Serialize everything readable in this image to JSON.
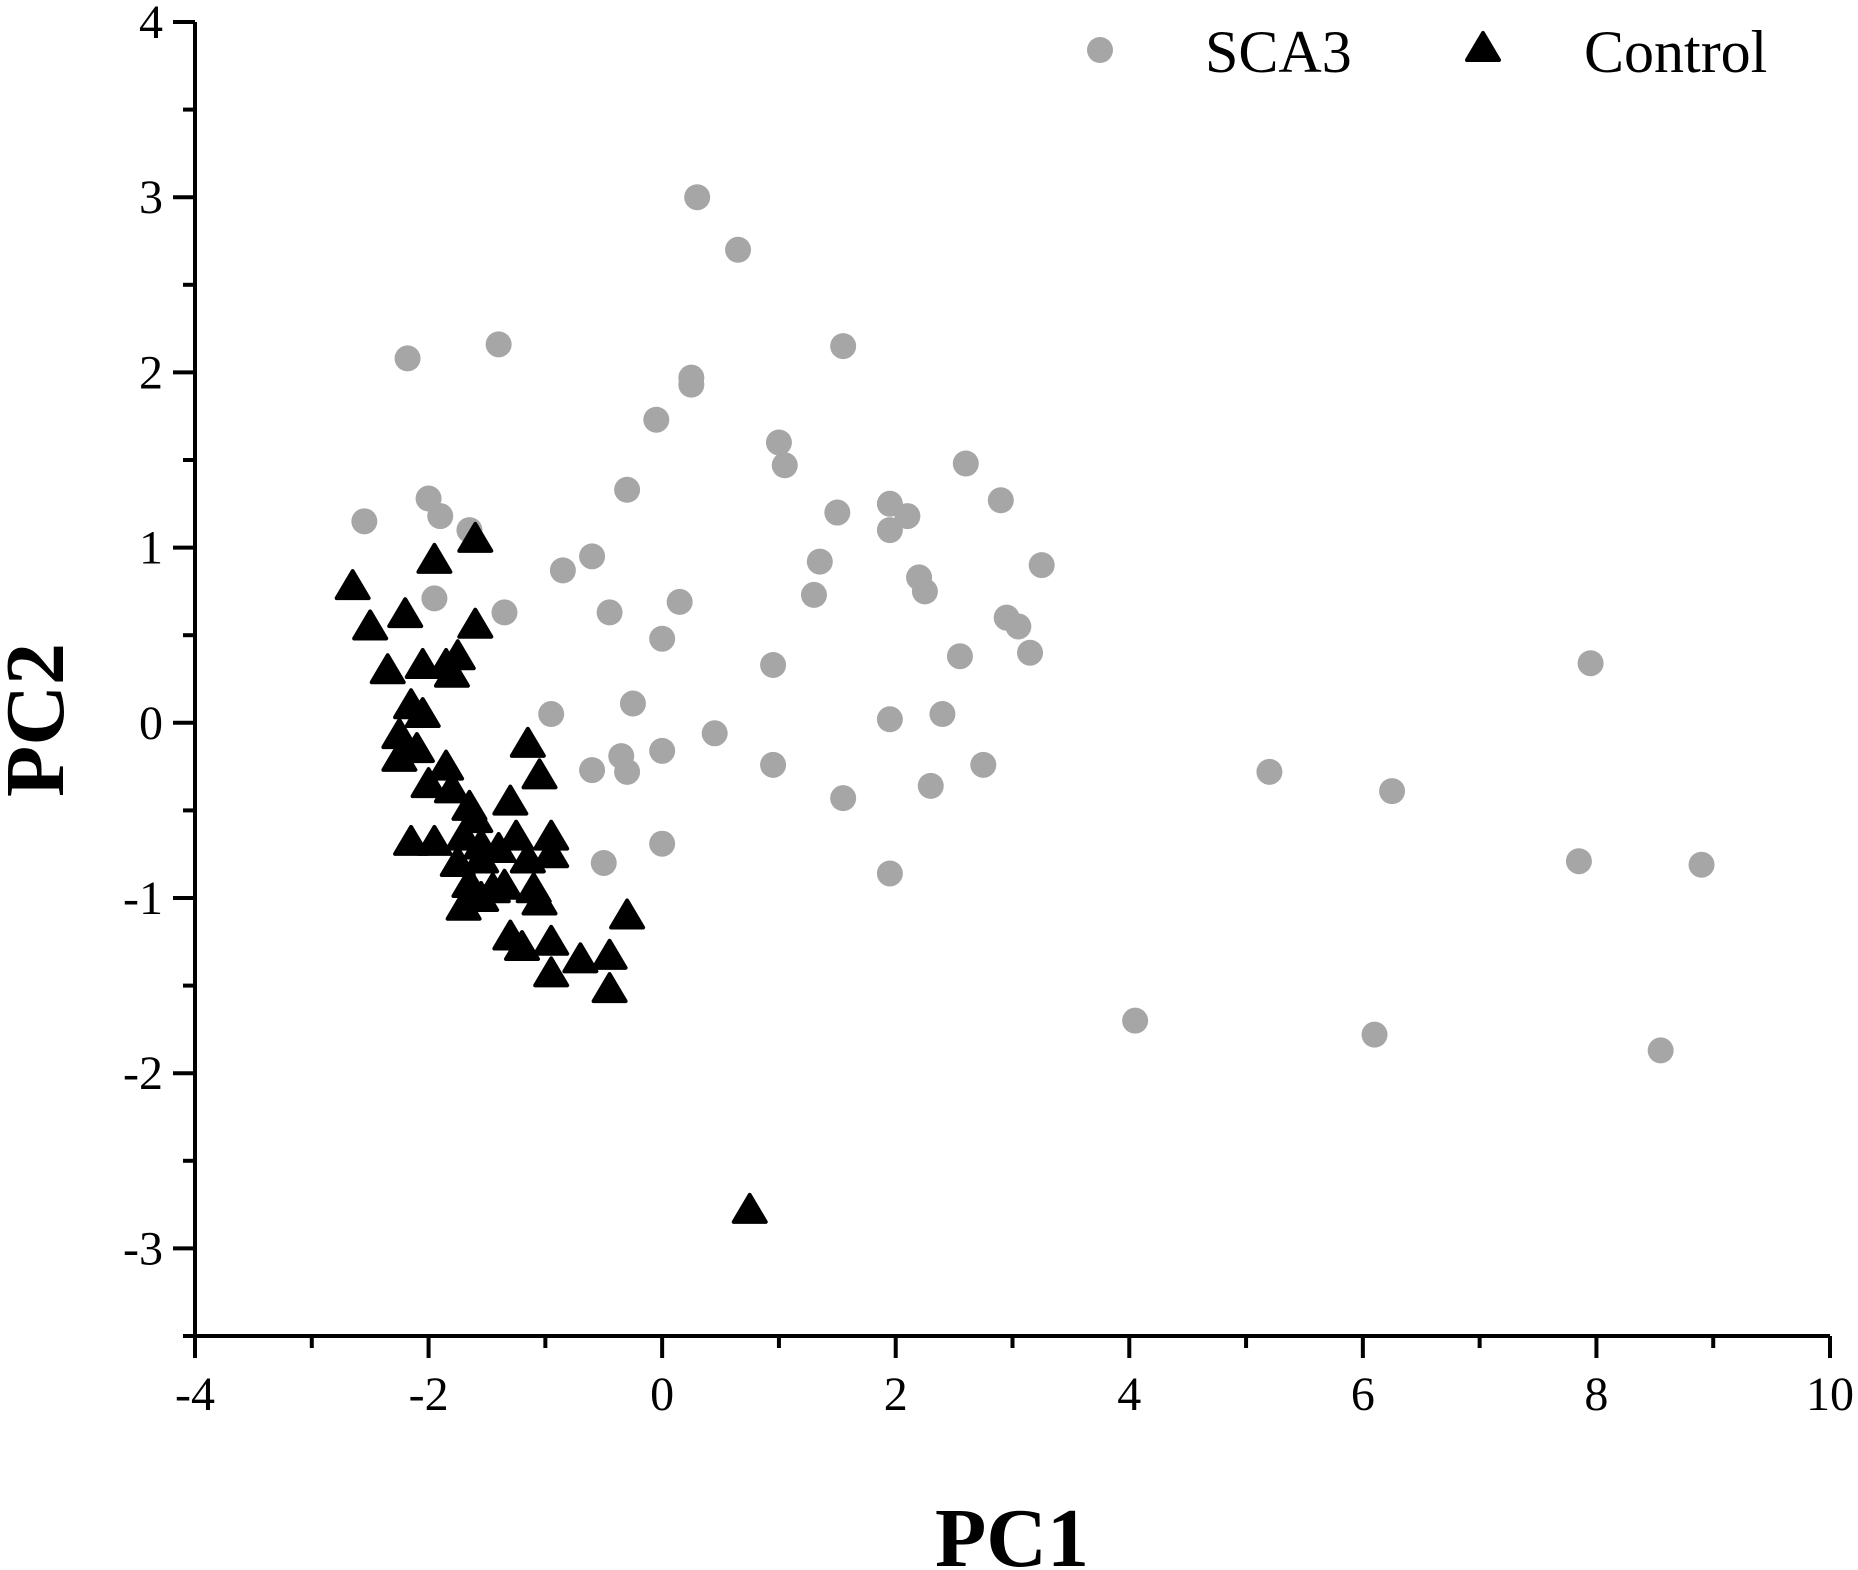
{
  "chart_data": {
    "type": "scatter",
    "title": "",
    "xlabel": "PC1",
    "ylabel": "PC2",
    "xlim": [
      -4,
      10
    ],
    "ylim": [
      -3.5,
      4
    ],
    "xticks": [
      -4,
      -2,
      0,
      2,
      4,
      6,
      8,
      10
    ],
    "xtick_labels": [
      "-4",
      "-2",
      "0",
      "2",
      "4",
      "6",
      "8",
      "10"
    ],
    "yticks": [
      -3,
      -2,
      -1,
      0,
      1,
      2,
      3,
      4
    ],
    "ytick_labels": [
      "-3",
      "-2",
      "-1",
      "0",
      "1",
      "2",
      "3",
      "4"
    ],
    "grid": false,
    "legend_position": "top-right",
    "series": [
      {
        "name": "SCA3",
        "marker": "circle",
        "color": "#a6a6a6",
        "points": [
          [
            0.3,
            3.0
          ],
          [
            0.65,
            2.7
          ],
          [
            -2.18,
            2.08
          ],
          [
            -1.4,
            2.16
          ],
          [
            1.55,
            2.15
          ],
          [
            0.25,
            1.97
          ],
          [
            0.25,
            1.93
          ],
          [
            -0.05,
            1.73
          ],
          [
            1.0,
            1.6
          ],
          [
            1.05,
            1.47
          ],
          [
            2.6,
            1.48
          ],
          [
            -2.55,
            1.15
          ],
          [
            -2.0,
            1.28
          ],
          [
            -1.9,
            1.18
          ],
          [
            -1.65,
            1.1
          ],
          [
            -0.3,
            1.33
          ],
          [
            1.5,
            1.2
          ],
          [
            1.95,
            1.25
          ],
          [
            1.95,
            1.1
          ],
          [
            2.1,
            1.18
          ],
          [
            2.9,
            1.27
          ],
          [
            -0.6,
            0.95
          ],
          [
            -0.85,
            0.87
          ],
          [
            1.35,
            0.92
          ],
          [
            2.2,
            0.83
          ],
          [
            2.25,
            0.75
          ],
          [
            3.25,
            0.9
          ],
          [
            -1.95,
            0.71
          ],
          [
            -1.35,
            0.63
          ],
          [
            -0.45,
            0.63
          ],
          [
            0.15,
            0.69
          ],
          [
            1.3,
            0.73
          ],
          [
            2.95,
            0.6
          ],
          [
            3.05,
            0.55
          ],
          [
            0.0,
            0.48
          ],
          [
            0.95,
            0.33
          ],
          [
            2.55,
            0.38
          ],
          [
            3.15,
            0.4
          ],
          [
            -0.95,
            0.05
          ],
          [
            -0.25,
            0.11
          ],
          [
            1.95,
            0.02
          ],
          [
            2.4,
            0.05
          ],
          [
            0.45,
            -0.06
          ],
          [
            -0.35,
            -0.19
          ],
          [
            0.0,
            -0.16
          ],
          [
            -0.6,
            -0.27
          ],
          [
            -0.3,
            -0.28
          ],
          [
            0.95,
            -0.24
          ],
          [
            2.75,
            -0.24
          ],
          [
            1.55,
            -0.43
          ],
          [
            2.3,
            -0.36
          ],
          [
            -0.5,
            -0.8
          ],
          [
            0.0,
            -0.69
          ],
          [
            1.95,
            -0.86
          ],
          [
            5.2,
            -0.28
          ],
          [
            6.25,
            -0.39
          ],
          [
            7.95,
            0.34
          ],
          [
            7.85,
            -0.79
          ],
          [
            8.9,
            -0.81
          ],
          [
            4.05,
            -1.7
          ],
          [
            6.1,
            -1.78
          ],
          [
            8.55,
            -1.87
          ]
        ]
      },
      {
        "name": "Control",
        "marker": "triangle",
        "color": "#000000",
        "points": [
          [
            -2.65,
            0.78
          ],
          [
            -2.5,
            0.55
          ],
          [
            -2.2,
            0.62
          ],
          [
            -1.95,
            0.93
          ],
          [
            -1.6,
            1.05
          ],
          [
            -1.6,
            0.56
          ],
          [
            -2.35,
            0.3
          ],
          [
            -2.05,
            0.33
          ],
          [
            -1.85,
            0.33
          ],
          [
            -1.75,
            0.38
          ],
          [
            -1.8,
            0.28
          ],
          [
            -2.15,
            0.1
          ],
          [
            -2.05,
            0.05
          ],
          [
            -2.25,
            -0.07
          ],
          [
            -2.1,
            -0.15
          ],
          [
            -2.25,
            -0.2
          ],
          [
            -2.0,
            -0.35
          ],
          [
            -1.85,
            -0.25
          ],
          [
            -1.8,
            -0.38
          ],
          [
            -1.65,
            -0.48
          ],
          [
            -1.6,
            -0.55
          ],
          [
            -1.7,
            -0.65
          ],
          [
            -1.55,
            -0.7
          ],
          [
            -2.15,
            -0.68
          ],
          [
            -1.95,
            -0.68
          ],
          [
            -1.75,
            -0.8
          ],
          [
            -1.55,
            -0.78
          ],
          [
            -1.65,
            -0.92
          ],
          [
            -1.7,
            -1.05
          ],
          [
            -1.55,
            -1.0
          ],
          [
            -1.45,
            -0.95
          ],
          [
            -1.4,
            -0.72
          ],
          [
            -1.35,
            -0.93
          ],
          [
            -1.25,
            -0.65
          ],
          [
            -1.15,
            -0.78
          ],
          [
            -1.3,
            -0.45
          ],
          [
            -1.15,
            -0.12
          ],
          [
            -1.05,
            -0.3
          ],
          [
            -1.1,
            -0.95
          ],
          [
            -1.05,
            -1.02
          ],
          [
            -0.95,
            -0.65
          ],
          [
            -0.95,
            -0.75
          ],
          [
            -1.3,
            -1.22
          ],
          [
            -1.2,
            -1.28
          ],
          [
            -0.95,
            -1.25
          ],
          [
            -0.95,
            -1.43
          ],
          [
            -0.7,
            -1.35
          ],
          [
            -0.45,
            -1.33
          ],
          [
            -0.45,
            -1.52
          ],
          [
            -0.3,
            -1.1
          ],
          [
            0.75,
            -2.78
          ]
        ]
      }
    ]
  }
}
